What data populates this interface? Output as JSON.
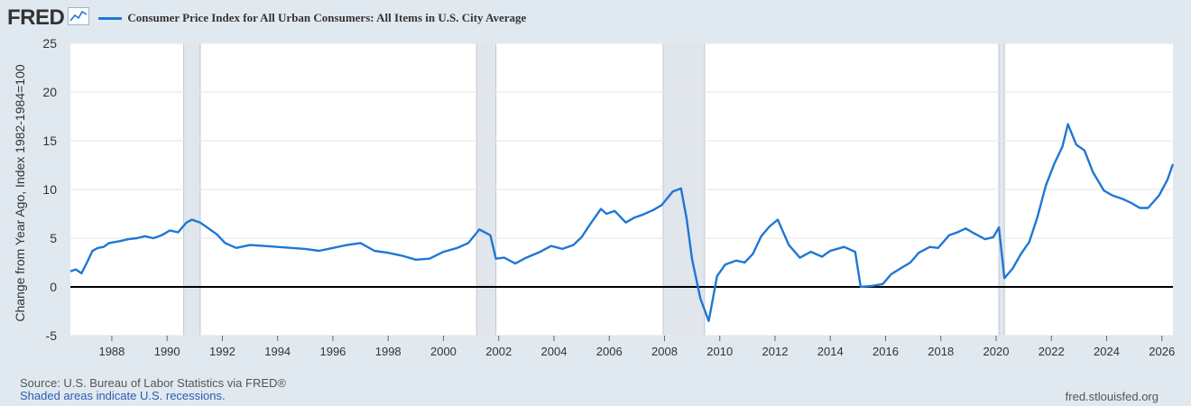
{
  "header": {
    "logo_text": "FRED",
    "logo_icon": "line-chart-icon"
  },
  "chart_data": {
    "type": "line",
    "title": "Consumer Price Index for All Urban Consumers: All Items in U.S. City Average",
    "ylabel": "Change from Year Ago, Index 1982-1984=100",
    "xlabel": "",
    "ylim": [
      -5,
      25
    ],
    "xlim": [
      1986.5,
      2026.4
    ],
    "yticks": [
      25,
      20,
      15,
      10,
      5,
      0,
      -5
    ],
    "xticks": [
      "1988",
      "1990",
      "1992",
      "1994",
      "1996",
      "1998",
      "2000",
      "2002",
      "2004",
      "2006",
      "2008",
      "2010",
      "2012",
      "2014",
      "2016",
      "2018",
      "2020",
      "2022",
      "2024",
      "2026"
    ],
    "grid": true,
    "series_color": "#1f77d4",
    "recessions": [
      [
        1990.6,
        1991.2
      ],
      [
        2001.2,
        2001.9
      ],
      [
        2007.95,
        2009.45
      ],
      [
        2020.1,
        2020.3
      ]
    ],
    "series": [
      {
        "name": "Consumer Price Index for All Urban Consumers: All Items in U.S. City Average",
        "x": [
          1986.5,
          1986.7,
          1986.9,
          1987.1,
          1987.3,
          1987.5,
          1987.7,
          1987.9,
          1988.1,
          1988.3,
          1988.6,
          1988.9,
          1989.2,
          1989.5,
          1989.8,
          1990.1,
          1990.4,
          1990.7,
          1990.9,
          1991.2,
          1991.5,
          1991.8,
          1992.1,
          1992.5,
          1993.0,
          1993.5,
          1994.0,
          1994.5,
          1995.0,
          1995.5,
          1996.0,
          1996.5,
          1997.0,
          1997.5,
          1998.0,
          1998.5,
          1999.0,
          1999.5,
          2000.0,
          2000.5,
          2000.9,
          2001.3,
          2001.7,
          2001.9,
          2002.2,
          2002.6,
          2003.0,
          2003.5,
          2003.9,
          2004.3,
          2004.7,
          2005.0,
          2005.3,
          2005.7,
          2005.9,
          2006.2,
          2006.6,
          2006.9,
          2007.2,
          2007.6,
          2007.9,
          2008.3,
          2008.6,
          2008.8,
          2009.0,
          2009.3,
          2009.6,
          2009.9,
          2010.2,
          2010.6,
          2010.9,
          2011.2,
          2011.5,
          2011.8,
          2012.1,
          2012.5,
          2012.9,
          2013.3,
          2013.7,
          2014.0,
          2014.5,
          2014.9,
          2015.1,
          2015.5,
          2015.9,
          2016.2,
          2016.6,
          2016.9,
          2017.2,
          2017.6,
          2017.9,
          2018.3,
          2018.6,
          2018.9,
          2019.2,
          2019.6,
          2019.9,
          2020.1,
          2020.3,
          2020.6,
          2020.9,
          2021.2,
          2021.5,
          2021.8,
          2022.1,
          2022.4,
          2022.6,
          2022.9,
          2023.2,
          2023.5,
          2023.9,
          2024.2,
          2024.6,
          2024.9,
          2025.2,
          2025.5,
          2025.9,
          2026.2,
          2026.4
        ],
        "values": [
          1.6,
          1.8,
          1.4,
          2.5,
          3.7,
          4.0,
          4.1,
          4.5,
          4.6,
          4.7,
          4.9,
          5.0,
          5.2,
          5.0,
          5.3,
          5.8,
          5.6,
          6.6,
          6.9,
          6.6,
          6.0,
          5.4,
          4.5,
          4.0,
          4.3,
          4.2,
          4.1,
          4.0,
          3.9,
          3.7,
          4.0,
          4.3,
          4.5,
          3.7,
          3.5,
          3.2,
          2.8,
          2.9,
          3.6,
          4.0,
          4.5,
          5.9,
          5.3,
          2.9,
          3.0,
          2.4,
          3.0,
          3.6,
          4.2,
          3.9,
          4.3,
          5.1,
          6.4,
          8.0,
          7.5,
          7.8,
          6.6,
          7.1,
          7.4,
          7.9,
          8.4,
          9.8,
          10.1,
          7.0,
          2.8,
          -1.2,
          -3.5,
          1.1,
          2.3,
          2.7,
          2.5,
          3.4,
          5.2,
          6.2,
          6.9,
          4.3,
          3.0,
          3.6,
          3.1,
          3.7,
          4.1,
          3.6,
          0.0,
          0.1,
          0.3,
          1.3,
          2.0,
          2.5,
          3.5,
          4.1,
          4.0,
          5.3,
          5.6,
          6.0,
          5.5,
          4.9,
          5.1,
          6.1,
          0.9,
          1.9,
          3.4,
          4.6,
          7.2,
          10.4,
          12.6,
          14.4,
          16.7,
          14.6,
          14.0,
          11.8,
          9.9,
          9.4,
          9.0,
          8.6,
          8.1,
          8.1,
          9.4,
          11.0,
          12.6
        ]
      }
    ]
  },
  "footer": {
    "source": "Source: U.S. Bureau of Labor Statistics via FRED®",
    "note": "Shaded areas indicate U.S. recessions.",
    "site": "fred.stlouisfed.org"
  }
}
